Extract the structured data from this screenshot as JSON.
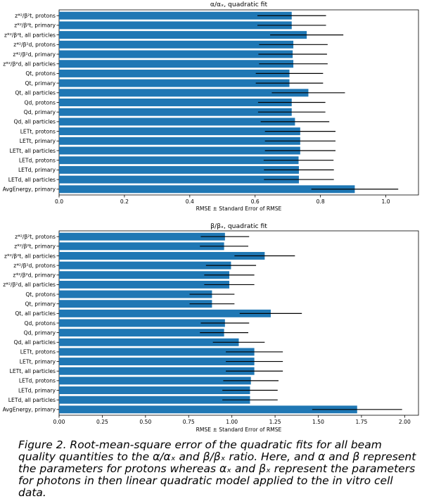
{
  "chart_data": [
    {
      "type": "bar",
      "orientation": "horizontal",
      "title": "α/αₓ, quadratic fit",
      "xlabel": "RMSE ± Standard Error of RMSE",
      "ylabel": "",
      "xlim": [
        0,
        1.1
      ],
      "xticks": [
        0.0,
        0.2,
        0.4,
        0.6,
        0.8,
        1.0
      ],
      "xtick_labels": [
        "0.0",
        "0.2",
        "0.4",
        "0.6",
        "0.8",
        "1.0"
      ],
      "bar_color": "#1f77b4",
      "grid": false,
      "categories": [
        "z*²/β²t, protons",
        "z*²/β²t, primary",
        "z*²/β²t, all particles",
        "z*²/β²d, protons",
        "z*²/β²d, primary",
        "z*²/β²d, all particles",
        "Qt, protons",
        "Qt, primary",
        "Qt, all particles",
        "Qd, protons",
        "Qd, primary",
        "Qd, all particles",
        "LETt, protons",
        "LETt, primary",
        "LETt, all particles",
        "LETd, protons",
        "LETd, primary",
        "LETd, all particles",
        "AvgEnergy, primary"
      ],
      "values": [
        0.712,
        0.712,
        0.758,
        0.717,
        0.715,
        0.717,
        0.705,
        0.705,
        0.763,
        0.712,
        0.712,
        0.722,
        0.738,
        0.738,
        0.738,
        0.733,
        0.734,
        0.734,
        0.905
      ],
      "errors": [
        0.105,
        0.105,
        0.112,
        0.105,
        0.105,
        0.105,
        0.103,
        0.103,
        0.112,
        0.103,
        0.103,
        0.105,
        0.108,
        0.108,
        0.108,
        0.107,
        0.107,
        0.107,
        0.133
      ]
    },
    {
      "type": "bar",
      "orientation": "horizontal",
      "title": "β/βₓ, quadratic fit",
      "xlabel": "RMSE ± Standard Error of RMSE",
      "ylabel": "",
      "xlim": [
        0,
        2.08
      ],
      "xticks": [
        0.0,
        0.25,
        0.5,
        0.75,
        1.0,
        1.25,
        1.5,
        1.75,
        2.0
      ],
      "xtick_labels": [
        "0.00",
        "0.25",
        "0.50",
        "0.75",
        "1.00",
        "1.25",
        "1.50",
        "1.75",
        "2.00"
      ],
      "bar_color": "#1f77b4",
      "grid": false,
      "categories": [
        "z*²/β²t, protons",
        "z*²/β²t, primary",
        "z*²/β²t, all particles",
        "z*²/β²d, protons",
        "z*²/β²d, primary",
        "z*²/β²d, all particles",
        "Qt, protons",
        "Qt, primary",
        "Qt, all particles",
        "Qd, protons",
        "Qd, primary",
        "Qd, all particles",
        "LETt, protons",
        "LETt, primary",
        "LETt, all particles",
        "LETd, protons",
        "LETd, primary",
        "LETd, all particles",
        "AvgEnergy, primary"
      ],
      "values": [
        0.96,
        0.955,
        1.19,
        0.995,
        0.985,
        0.985,
        0.885,
        0.885,
        1.225,
        0.96,
        0.955,
        1.04,
        1.13,
        1.13,
        1.13,
        1.11,
        1.105,
        1.105,
        1.725
      ],
      "errors": [
        0.14,
        0.14,
        0.175,
        0.145,
        0.145,
        0.145,
        0.13,
        0.13,
        0.18,
        0.14,
        0.14,
        0.15,
        0.165,
        0.165,
        0.165,
        0.16,
        0.16,
        0.16,
        0.26
      ]
    }
  ],
  "caption": "Figure 2. Root-mean-square error of the quadratic fits for all beam quality quantities to the α/αₓ and β/βₓ ratio. Here, and α and β represent the parameters for protons whereas αₓ and βₓ represent the parameters for photons in then linear quadratic model applied to the in vitro cell data."
}
